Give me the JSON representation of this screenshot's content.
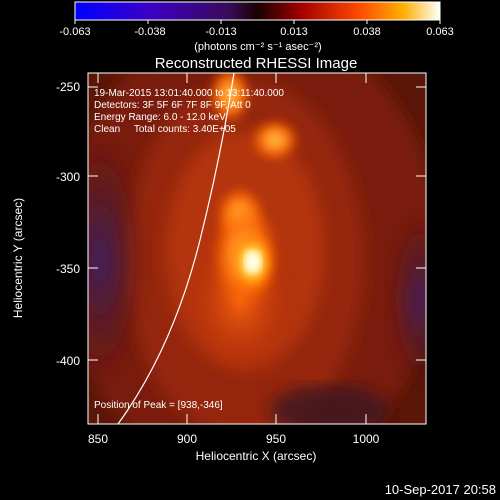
{
  "colorbar": {
    "ticks": [
      "-0.063",
      "-0.038",
      "-0.013",
      "0.013",
      "0.038",
      "0.063"
    ],
    "units": "(photons cm⁻² s⁻¹ asec⁻²)",
    "range": [
      -0.063,
      0.063
    ]
  },
  "plot": {
    "title": "Reconstructed RHESSI Image",
    "x_label": "Heliocentric X (arcsec)",
    "y_label": "Heliocentric Y (arcsec)",
    "x_ticks": [
      "850",
      "900",
      "950",
      "1000"
    ],
    "y_ticks": [
      "-250",
      "-300",
      "-350",
      "-400"
    ],
    "x_range": [
      838,
      1028
    ],
    "y_range": [
      -435,
      -245
    ],
    "info_lines": [
      "19-Mar-2015 13:01:40.000 to 13:11:40.000",
      "Detectors: 3F 5F 6F 7F 8F 9F, Att 0",
      "Energy Range: 6.0 - 12.0 keV",
      "Clean     Total counts: 3.40E+05"
    ],
    "peak_label": "Position of Peak = [938,-346]",
    "peak": [
      938,
      -346
    ],
    "colors": {
      "limb_line": "#ffffff",
      "axes": "#ffffff",
      "background": "#000000"
    }
  },
  "footer": {
    "timestamp": "10-Sep-2017 20:58"
  }
}
